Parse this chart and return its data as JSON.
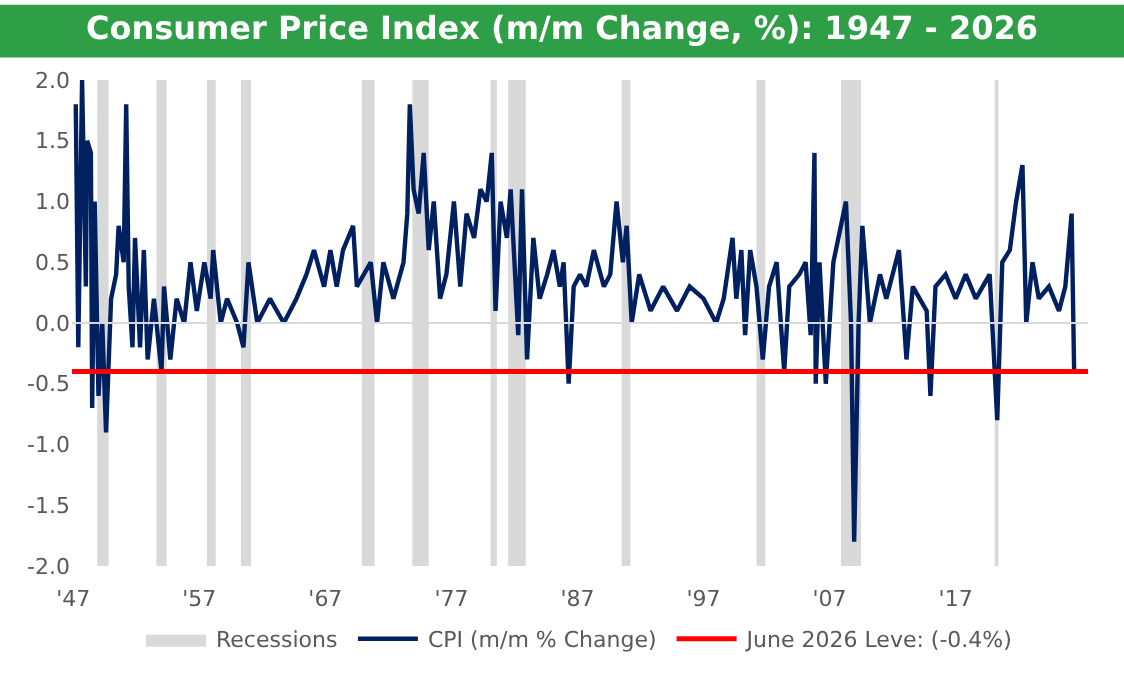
{
  "chart_data": {
    "type": "line",
    "title": "Consumer Price Index (m/m Change, %): 1947 - 2026",
    "x": [
      1947.2,
      1947.4,
      1947.7,
      1948.0,
      1948.1,
      1948.4,
      1948.5,
      1948.7,
      1949.0,
      1949.3,
      1949.6,
      1950.0,
      1950.4,
      1950.6,
      1951.0,
      1951.2,
      1951.4,
      1951.7,
      1951.9,
      1952.3,
      1952.6,
      1952.9,
      1953.4,
      1954.0,
      1954.2,
      1954.7,
      1955.2,
      1955.8,
      1956.3,
      1956.8,
      1957.4,
      1957.9,
      1958.1,
      1958.7,
      1959.2,
      1960.0,
      1960.5,
      1960.9,
      1961.6,
      1962.6,
      1963.7,
      1964.7,
      1965.5,
      1966.1,
      1966.9,
      1967.4,
      1967.9,
      1968.4,
      1969.2,
      1969.5,
      1970.6,
      1971.1,
      1971.6,
      1972.4,
      1973.2,
      1973.5,
      1973.7,
      1974.0,
      1974.4,
      1974.8,
      1975.2,
      1975.6,
      1976.1,
      1976.6,
      1977.2,
      1977.7,
      1978.2,
      1978.8,
      1979.3,
      1979.8,
      1980.2,
      1980.5,
      1980.9,
      1981.4,
      1981.7,
      1982.0,
      1982.3,
      1982.6,
      1983.0,
      1983.5,
      1984.0,
      1984.6,
      1985.1,
      1985.6,
      1985.9,
      1986.3,
      1986.7,
      1987.2,
      1987.7,
      1988.3,
      1989.1,
      1989.6,
      1990.1,
      1990.6,
      1990.9,
      1991.3,
      1991.9,
      1992.8,
      1993.8,
      1994.9,
      1995.9,
      1997.0,
      1998.0,
      1998.6,
      1999.3,
      1999.6,
      2000.0,
      2000.3,
      2000.7,
      2001.2,
      2001.7,
      2002.2,
      2002.8,
      2003.4,
      2003.8,
      2004.6,
      2005.1,
      2005.5,
      2005.8,
      2005.9,
      2006.2,
      2006.7,
      2007.3,
      2007.9,
      2008.3,
      2008.7,
      2008.95,
      2009.3,
      2009.6,
      2010.2,
      2011.0,
      2011.5,
      2012.5,
      2013.1,
      2013.6,
      2014.7,
      2015.0,
      2015.4,
      2016.2,
      2017.0,
      2017.8,
      2018.6,
      2019.7,
      2020.3,
      2020.7,
      2021.3,
      2021.8,
      2022.3,
      2022.6,
      2023.1,
      2023.6,
      2024.4,
      2025.2,
      2025.7,
      2026.2,
      2026.4
    ],
    "series": [
      {
        "name": "CPI (m/m % Change)",
        "color": "#002060",
        "values": [
          1.8,
          -0.2,
          2.0,
          0.3,
          1.5,
          1.4,
          -0.7,
          1.0,
          -0.6,
          0.0,
          -0.9,
          0.2,
          0.4,
          0.8,
          0.5,
          1.8,
          0.3,
          -0.2,
          0.7,
          -0.2,
          0.6,
          -0.3,
          0.2,
          -0.4,
          0.3,
          -0.3,
          0.2,
          0.0,
          0.5,
          0.1,
          0.5,
          0.2,
          0.6,
          0.0,
          0.2,
          0.0,
          -0.2,
          0.5,
          0.0,
          0.2,
          0.0,
          0.2,
          0.4,
          0.6,
          0.3,
          0.6,
          0.3,
          0.6,
          0.8,
          0.3,
          0.5,
          0.0,
          0.5,
          0.2,
          0.5,
          0.9,
          1.8,
          1.1,
          0.9,
          1.4,
          0.6,
          1.0,
          0.2,
          0.4,
          1.0,
          0.3,
          0.9,
          0.7,
          1.1,
          1.0,
          1.4,
          0.1,
          1.0,
          0.7,
          1.1,
          0.5,
          -0.1,
          1.1,
          -0.3,
          0.7,
          0.2,
          0.4,
          0.6,
          0.3,
          0.5,
          -0.5,
          0.3,
          0.4,
          0.3,
          0.6,
          0.3,
          0.4,
          1.0,
          0.5,
          0.8,
          0.0,
          0.4,
          0.1,
          0.3,
          0.1,
          0.3,
          0.2,
          0.0,
          0.2,
          0.7,
          0.2,
          0.6,
          -0.1,
          0.6,
          0.3,
          -0.3,
          0.3,
          0.5,
          -0.4,
          0.3,
          0.4,
          0.5,
          -0.1,
          1.4,
          -0.5,
          0.5,
          -0.5,
          0.5,
          0.8,
          1.0,
          0.0,
          -1.8,
          0.0,
          0.8,
          0.0,
          0.4,
          0.2,
          0.6,
          -0.3,
          0.3,
          0.1,
          -0.6,
          0.3,
          0.4,
          0.2,
          0.4,
          0.2,
          0.4,
          -0.8,
          0.5,
          0.6,
          1.0,
          1.3,
          0.0,
          0.5,
          0.2,
          0.3,
          0.1,
          0.3,
          0.9,
          -0.4
        ]
      }
    ],
    "xlim": [
      1946.9,
      2027.5
    ],
    "xticks": [
      {
        "value": 1947,
        "label": "'47"
      },
      {
        "value": 1957,
        "label": "'57"
      },
      {
        "value": 1967,
        "label": "'67"
      },
      {
        "value": 1977,
        "label": "'77"
      },
      {
        "value": 1987,
        "label": "'87"
      },
      {
        "value": 1997,
        "label": "'97"
      },
      {
        "value": 2007,
        "label": "'07"
      },
      {
        "value": 2017,
        "label": "'17"
      }
    ],
    "ylim": [
      -2.0,
      2.0
    ],
    "yticks": [
      {
        "value": -2,
        "label": "-2.0"
      },
      {
        "value": -1.5,
        "label": "-1.5"
      },
      {
        "value": -1,
        "label": "-1.0"
      },
      {
        "value": -0.5,
        "label": "-0.5"
      },
      {
        "value": 0,
        "label": "0.0"
      },
      {
        "value": 0.5,
        "label": "0.5"
      },
      {
        "value": 1,
        "label": "1.0"
      },
      {
        "value": 1.5,
        "label": "1.5"
      },
      {
        "value": 2,
        "label": "2.0"
      }
    ],
    "bands": [
      {
        "axis": "x",
        "from": 1948.9,
        "to": 1949.8,
        "label": "Recessions",
        "color": "#d9d9d9"
      },
      {
        "axis": "x",
        "from": 1953.6,
        "to": 1954.4,
        "color": "#d9d9d9"
      },
      {
        "axis": "x",
        "from": 1957.6,
        "to": 1958.3,
        "color": "#d9d9d9"
      },
      {
        "axis": "x",
        "from": 1960.3,
        "to": 1961.1,
        "color": "#d9d9d9"
      },
      {
        "axis": "x",
        "from": 1969.9,
        "to": 1970.9,
        "color": "#d9d9d9"
      },
      {
        "axis": "x",
        "from": 1973.9,
        "to": 1975.2,
        "color": "#d9d9d9"
      },
      {
        "axis": "x",
        "from": 1980.1,
        "to": 1980.6,
        "color": "#d9d9d9"
      },
      {
        "axis": "x",
        "from": 1981.5,
        "to": 1982.9,
        "color": "#d9d9d9"
      },
      {
        "axis": "x",
        "from": 1990.5,
        "to": 1991.2,
        "color": "#d9d9d9"
      },
      {
        "axis": "x",
        "from": 2001.2,
        "to": 2001.9,
        "color": "#d9d9d9"
      },
      {
        "axis": "x",
        "from": 2007.9,
        "to": 2009.5,
        "color": "#d9d9d9"
      },
      {
        "axis": "x",
        "from": 2020.1,
        "to": 2020.4,
        "color": "#d9d9d9"
      }
    ],
    "ref_lines": [
      {
        "axis": "y",
        "value": 0,
        "color": "#d9d9d9"
      },
      {
        "axis": "y",
        "value": -0.4,
        "label": "June 2026 Leve: (-0.4%)",
        "color": "#ff0000"
      }
    ],
    "legend": "bottom",
    "marker": "none",
    "line_style": "solid"
  }
}
